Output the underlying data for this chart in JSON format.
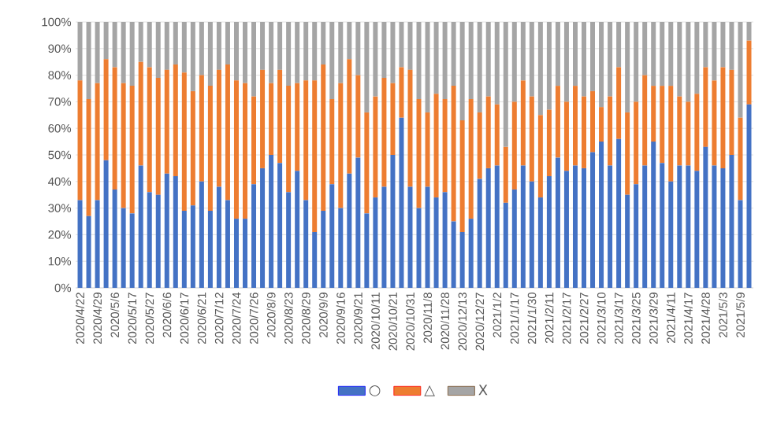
{
  "chart_data": {
    "type": "bar",
    "stacked": true,
    "categories": [
      "2020/4/22",
      null,
      "2020/4/29",
      null,
      "2020/5/6",
      null,
      "2020/5/17",
      null,
      "2020/5/27",
      null,
      "2020/6/6",
      null,
      "2020/6/17",
      null,
      "2020/6/21",
      null,
      "2020/7/12",
      null,
      "2020/7/24",
      null,
      "2020/7/26",
      null,
      "2020/8/9",
      null,
      "2020/8/23",
      null,
      "2020/8/29",
      null,
      "2020/9/9",
      null,
      "2020/9/16",
      null,
      "2020/9/21",
      null,
      "2020/10/11",
      null,
      "2020/10/21",
      null,
      "2020/10/31",
      null,
      "2020/11/8",
      null,
      "2020/11/28",
      null,
      "2020/12/13",
      null,
      "2020/12/27",
      null,
      "2021/1/2",
      null,
      "2021/1/17",
      null,
      "2021/1/30",
      null,
      "2021/2/11",
      null,
      "2021/2/17",
      null,
      "2021/2/27",
      null,
      "2021/3/10",
      null,
      "2021/3/17",
      null,
      "2021/3/25",
      null,
      "2021/3/29",
      null,
      "2021/4/11",
      null,
      "2021/4/17",
      null,
      "2021/4/28",
      null,
      "2021/5/3",
      null,
      "2021/5/9",
      null
    ],
    "series": [
      {
        "name": "○",
        "color": "#4472c4",
        "values": [
          33,
          27,
          33,
          48,
          37,
          30,
          28,
          46,
          36,
          35,
          43,
          42,
          29,
          31,
          40,
          29,
          38,
          33,
          26,
          26,
          39,
          45,
          50,
          47,
          36,
          44,
          33,
          21,
          29,
          39,
          30,
          43,
          49,
          28,
          34,
          38,
          50,
          64,
          38,
          30,
          38,
          34,
          36,
          25,
          21,
          26,
          41,
          45,
          46,
          32,
          37,
          46,
          40,
          34,
          42,
          49,
          44,
          46,
          45,
          51,
          55,
          46,
          56,
          35,
          39,
          46,
          55,
          47,
          40,
          46,
          46,
          44,
          53,
          46,
          45,
          50,
          33,
          69
        ]
      },
      {
        "name": "△",
        "color": "#ed7d31",
        "values": [
          45,
          44,
          44,
          38,
          46,
          47,
          48,
          39,
          47,
          44,
          39,
          42,
          52,
          43,
          40,
          47,
          44,
          51,
          52,
          51,
          33,
          37,
          27,
          35,
          40,
          33,
          45,
          57,
          55,
          32,
          47,
          43,
          31,
          38,
          38,
          41,
          27,
          19,
          44,
          41,
          28,
          39,
          35,
          51,
          42,
          45,
          25,
          27,
          23,
          21,
          33,
          32,
          32,
          31,
          25,
          27,
          26,
          30,
          27,
          23,
          13,
          26,
          27,
          31,
          31,
          34,
          21,
          29,
          36,
          26,
          24,
          29,
          30,
          32,
          38,
          32,
          31,
          24
        ]
      },
      {
        "name": "X",
        "color": "#a5a5a5",
        "values": [
          22,
          29,
          23,
          14,
          17,
          23,
          24,
          15,
          17,
          21,
          18,
          16,
          19,
          26,
          20,
          24,
          18,
          16,
          22,
          23,
          28,
          18,
          23,
          18,
          24,
          23,
          22,
          22,
          16,
          29,
          23,
          14,
          20,
          34,
          28,
          21,
          23,
          17,
          18,
          29,
          34,
          27,
          29,
          24,
          37,
          29,
          34,
          28,
          31,
          47,
          30,
          22,
          28,
          35,
          33,
          24,
          30,
          24,
          28,
          26,
          32,
          28,
          17,
          34,
          30,
          20,
          24,
          24,
          24,
          28,
          30,
          27,
          17,
          22,
          17,
          18,
          36,
          7
        ]
      }
    ],
    "ylim": [
      0,
      100
    ],
    "yticks": [
      {
        "value": 0,
        "label": "0%"
      },
      {
        "value": 10,
        "label": "10%"
      },
      {
        "value": 20,
        "label": "20%"
      },
      {
        "value": 30,
        "label": "30%"
      },
      {
        "value": 40,
        "label": "40%"
      },
      {
        "value": 50,
        "label": "50%"
      },
      {
        "value": 60,
        "label": "60%"
      },
      {
        "value": 70,
        "label": "70%"
      },
      {
        "value": 80,
        "label": "80%"
      },
      {
        "value": 90,
        "label": "90%"
      },
      {
        "value": 100,
        "label": "100%"
      }
    ],
    "grid": "y",
    "legend": "bottom"
  }
}
